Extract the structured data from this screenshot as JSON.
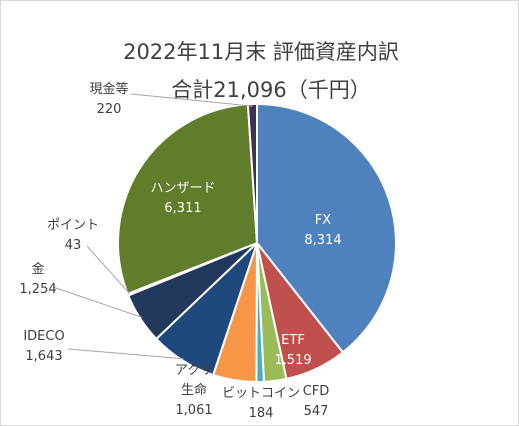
{
  "chart_data": {
    "type": "pie",
    "title": "2022年11月末 評価資産内訳",
    "subtitle": "合計21,096（千円）",
    "categories": [
      "FX",
      "ETF",
      "CFD",
      "ビットコイン",
      "アクサ生命",
      "IDECO",
      "金",
      "ポイント",
      "ハンザード",
      "現金等"
    ],
    "values": [
      8314,
      1519,
      547,
      184,
      1061,
      1643,
      1254,
      43,
      6311,
      220
    ],
    "value_labels": [
      "8,314",
      "1,519",
      "547",
      "184",
      "1,061",
      "1,643",
      "1,254",
      "43",
      "6,311",
      "220"
    ],
    "colors": [
      "#4f81bd",
      "#c0504d",
      "#9bbb59",
      "#4bacc6",
      "#f79646",
      "#1f497d",
      "#23395b",
      "#4f81bd",
      "#607d2b",
      "#403152"
    ],
    "legend": "none"
  }
}
